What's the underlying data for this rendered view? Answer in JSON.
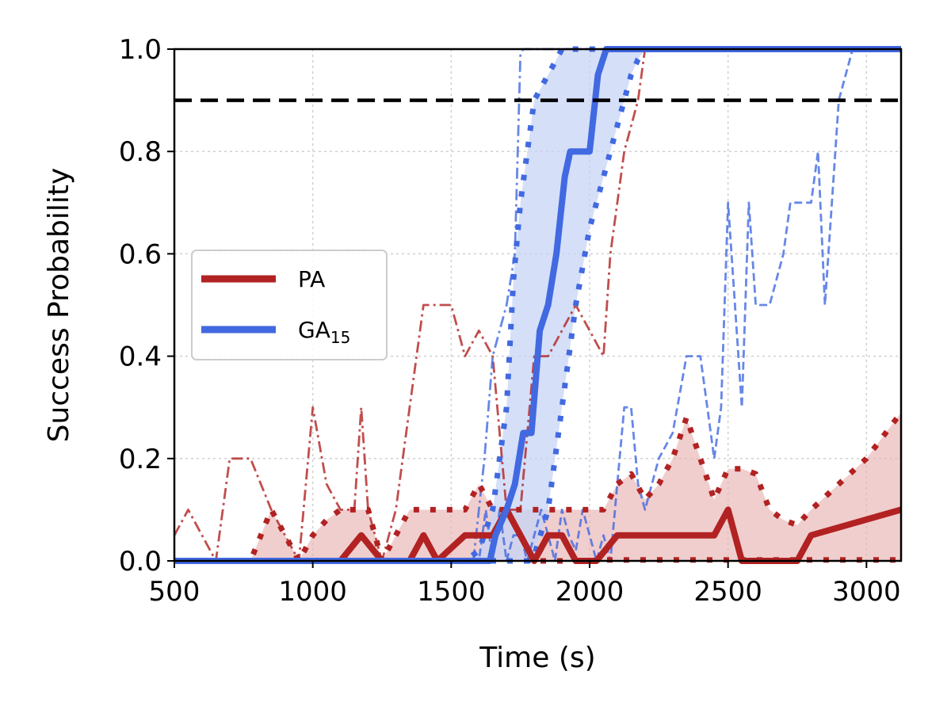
{
  "chart_data": {
    "type": "line",
    "title": "",
    "xlabel": "Time (s)",
    "ylabel": "Success Probability",
    "xlim": [
      500,
      3125
    ],
    "ylim": [
      0,
      1.0
    ],
    "xticks": [
      500,
      1000,
      1500,
      2000,
      2500,
      3000
    ],
    "yticks": [
      0.0,
      0.2,
      0.4,
      0.6,
      0.8,
      1.0
    ],
    "xtick_labels": [
      "500",
      "1000",
      "1500",
      "2000",
      "2500",
      "3000"
    ],
    "ytick_labels": [
      "0.0",
      "0.2",
      "0.4",
      "0.6",
      "0.8",
      "1.0"
    ],
    "grid": true,
    "legend_position": "center-left",
    "threshold": 0.9,
    "colors": {
      "PA": "#b22222",
      "PA_band": "#e8b3b3",
      "GA": "#4169e1",
      "GA_band": "#c7d4f5",
      "threshold": "#000000"
    },
    "legend": [
      {
        "main": "PA",
        "sub": "",
        "color": "#b22222"
      },
      {
        "main": "GA",
        "sub": "15",
        "color": "#4169e1"
      }
    ],
    "series": [
      {
        "group": "PA",
        "role": "median",
        "x": [
          500,
          1100,
          1175,
          1250,
          1300,
          1350,
          1400,
          1450,
          1550,
          1600,
          1650,
          1700,
          1750,
          1800,
          1850,
          1875,
          1900,
          1950,
          2000,
          2025,
          2100,
          2150,
          2175,
          2200,
          2300,
          2350,
          2400,
          2450,
          2500,
          2550,
          2600,
          2650,
          2700,
          2750,
          2800,
          3125
        ],
        "y": [
          0,
          0,
          0.05,
          0,
          0,
          0,
          0.05,
          0,
          0.05,
          0.05,
          0.05,
          0.1,
          0.05,
          0,
          0.05,
          0.05,
          0.05,
          0,
          0,
          0,
          0.05,
          0.05,
          0.05,
          0.05,
          0.05,
          0.05,
          0.05,
          0.05,
          0.1,
          0,
          0,
          0,
          0,
          0,
          0.05,
          0.1
        ]
      },
      {
        "group": "PA",
        "role": "upper-quantile",
        "x": [
          500,
          775,
          850,
          900,
          950,
          1000,
          1050,
          1100,
          1150,
          1200,
          1250,
          1300,
          1350,
          1400,
          1450,
          1550,
          1600,
          1650,
          1700,
          1750,
          1850,
          1950,
          2000,
          2050,
          2100,
          2150,
          2200,
          2250,
          2300,
          2350,
          2400,
          2450,
          2500,
          2550,
          2600,
          2650,
          2700,
          2750,
          2800,
          2900,
          3000,
          3125
        ],
        "y": [
          0,
          0,
          0.1,
          0.05,
          0,
          0.05,
          0.08,
          0.1,
          0.1,
          0.1,
          0,
          0.05,
          0.1,
          0.1,
          0.1,
          0.1,
          0.15,
          0.1,
          0.1,
          0.1,
          0.1,
          0.1,
          0.1,
          0.1,
          0.15,
          0.17,
          0.12,
          0.15,
          0.2,
          0.28,
          0.2,
          0.12,
          0.18,
          0.18,
          0.17,
          0.1,
          0.08,
          0.07,
          0.1,
          0.15,
          0.2,
          0.29
        ]
      },
      {
        "group": "PA",
        "role": "lower-quantile",
        "x": [
          500,
          2000,
          2050,
          3125
        ],
        "y": [
          0,
          0,
          0.002,
          0.002
        ]
      },
      {
        "group": "PA",
        "role": "best-case",
        "x": [
          500,
          550,
          600,
          650,
          700,
          775,
          850,
          900,
          950,
          1000,
          1050,
          1100,
          1150,
          1175,
          1200,
          1250,
          1300,
          1350,
          1400,
          1450,
          1500,
          1550,
          1600,
          1650,
          1700,
          1750,
          1800,
          1850,
          1900,
          1950,
          2000,
          2050,
          2075,
          2125,
          2175,
          2200
        ],
        "y": [
          0.05,
          0.1,
          0.05,
          0,
          0.2,
          0.2,
          0.1,
          0.05,
          0,
          0.3,
          0.15,
          0.1,
          0.1,
          0.3,
          0.1,
          0,
          0.1,
          0.3,
          0.5,
          0.5,
          0.5,
          0.4,
          0.45,
          0.4,
          0.1,
          0.1,
          0.4,
          0.4,
          0.45,
          0.5,
          0.45,
          0.4,
          0.6,
          0.8,
          0.9,
          1.0
        ]
      },
      {
        "group": "GA",
        "role": "median",
        "x": [
          500,
          1640,
          1660,
          1700,
          1730,
          1760,
          1790,
          1820,
          1850,
          1880,
          1910,
          1930,
          1960,
          2000,
          2030,
          2060,
          2080,
          3125
        ],
        "y": [
          0,
          0,
          0.05,
          0.1,
          0.15,
          0.25,
          0.25,
          0.45,
          0.5,
          0.6,
          0.75,
          0.8,
          0.8,
          0.8,
          0.95,
          1.0,
          1.0,
          1.0
        ]
      },
      {
        "group": "GA",
        "role": "upper-quantile",
        "x": [
          500,
          1550,
          1600,
          1650,
          1700,
          1725,
          1750,
          1775,
          1800,
          1850,
          1900,
          1950,
          2000,
          2050,
          2100,
          3125
        ],
        "y": [
          0,
          0,
          0.02,
          0.1,
          0.3,
          0.55,
          0.7,
          0.8,
          0.9,
          0.95,
          1.0,
          1.0,
          1.0,
          1.0,
          1.0,
          1.0
        ]
      },
      {
        "group": "GA",
        "role": "lower-quantile",
        "x": [
          500,
          1780,
          1800,
          1850,
          1900,
          1950,
          2000,
          2050,
          2100,
          2150,
          2175,
          2200,
          3125
        ],
        "y": [
          0,
          0,
          0.01,
          0.1,
          0.3,
          0.5,
          0.65,
          0.75,
          0.85,
          0.95,
          0.98,
          1.0,
          1.0
        ]
      },
      {
        "group": "GA",
        "role": "best-case",
        "x": [
          500,
          1580,
          1620,
          1650,
          1700,
          1730,
          1750,
          1760,
          3125
        ],
        "y": [
          0,
          0,
          0.2,
          0.4,
          0.5,
          0.6,
          0.99,
          1.0,
          1.0
        ]
      },
      {
        "group": "GA",
        "role": "worst-case",
        "x": [
          500,
          1600,
          1625,
          1650,
          1675,
          1700,
          1725,
          1750,
          1775,
          1800,
          1825,
          1850,
          1875,
          1900,
          1925,
          1950,
          1975,
          2000,
          2025,
          2050,
          2075,
          2100,
          2125,
          2150,
          2175,
          2200,
          2250,
          2300,
          2350,
          2375,
          2400,
          2425,
          2450,
          2475,
          2500,
          2525,
          2550,
          2575,
          2600,
          2650,
          2700,
          2725,
          2750,
          2800,
          2825,
          2850,
          2875,
          2900,
          2950
        ],
        "y": [
          0,
          0,
          0.1,
          0,
          0.1,
          0,
          0.05,
          0.05,
          0,
          0.05,
          0.1,
          0.05,
          0,
          0.1,
          0.05,
          0.02,
          0.1,
          0.05,
          0,
          0.05,
          0,
          0.15,
          0.3,
          0.3,
          0.15,
          0.1,
          0.2,
          0.25,
          0.4,
          0.4,
          0.4,
          0.3,
          0.2,
          0.3,
          0.7,
          0.5,
          0.3,
          0.7,
          0.5,
          0.5,
          0.6,
          0.7,
          0.7,
          0.7,
          0.8,
          0.5,
          0.7,
          0.9,
          1.0
        ]
      }
    ]
  }
}
